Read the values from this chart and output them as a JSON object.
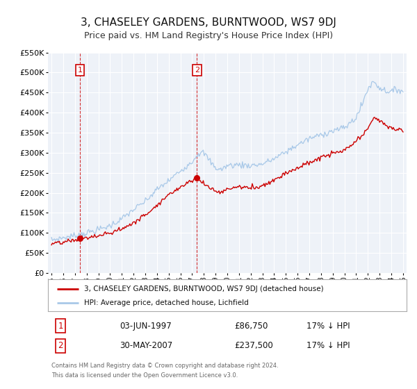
{
  "title": "3, CHASELEY GARDENS, BURNTWOOD, WS7 9DJ",
  "subtitle": "Price paid vs. HM Land Registry's House Price Index (HPI)",
  "title_fontsize": 11,
  "subtitle_fontsize": 9,
  "hpi_color": "#a8c8e8",
  "price_color": "#cc0000",
  "marker_color": "#cc0000",
  "background_color": "#ffffff",
  "plot_bg_color": "#eef2f8",
  "grid_color": "#ffffff",
  "ylim": [
    0,
    550000
  ],
  "yticks": [
    0,
    50000,
    100000,
    150000,
    200000,
    250000,
    300000,
    350000,
    400000,
    450000,
    500000,
    550000
  ],
  "xlim_start": 1994.7,
  "xlim_end": 2025.3,
  "sale1_x": 1997.42,
  "sale1_y": 86750,
  "sale1_label": "1",
  "sale2_x": 2007.41,
  "sale2_y": 237500,
  "sale2_label": "2",
  "legend_label_red": "3, CHASELEY GARDENS, BURNTWOOD, WS7 9DJ (detached house)",
  "legend_label_blue": "HPI: Average price, detached house, Lichfield",
  "table_row1": [
    "1",
    "03-JUN-1997",
    "£86,750",
    "17% ↓ HPI"
  ],
  "table_row2": [
    "2",
    "30-MAY-2007",
    "£237,500",
    "17% ↓ HPI"
  ],
  "footer1": "Contains HM Land Registry data © Crown copyright and database right 2024.",
  "footer2": "This data is licensed under the Open Government Licence v3.0.",
  "hpi_waypoints_x": [
    1995.0,
    1996.0,
    1997.0,
    1998.0,
    1999.0,
    2000.0,
    2001.0,
    2002.0,
    2003.0,
    2004.0,
    2005.0,
    2006.0,
    2007.0,
    2007.5,
    2008.0,
    2008.5,
    2009.0,
    2009.5,
    2010.0,
    2011.0,
    2012.0,
    2013.0,
    2014.0,
    2015.0,
    2016.0,
    2017.0,
    2018.0,
    2019.0,
    2020.0,
    2021.0,
    2021.5,
    2022.0,
    2022.5,
    2023.0,
    2023.5,
    2024.0,
    2024.5,
    2025.0
  ],
  "hpi_waypoints_y": [
    82000,
    88000,
    93000,
    100000,
    108000,
    118000,
    135000,
    158000,
    178000,
    208000,
    230000,
    255000,
    278000,
    298000,
    300000,
    280000,
    262000,
    258000,
    268000,
    270000,
    268000,
    272000,
    285000,
    302000,
    320000,
    335000,
    345000,
    355000,
    362000,
    388000,
    420000,
    460000,
    478000,
    462000,
    455000,
    452000,
    458000,
    455000
  ],
  "price_waypoints_x": [
    1995.0,
    1996.0,
    1997.0,
    1997.42,
    1998.0,
    1999.0,
    2000.0,
    2001.0,
    2002.0,
    2003.0,
    2004.0,
    2005.0,
    2006.0,
    2007.0,
    2007.41,
    2008.0,
    2009.0,
    2009.5,
    2010.0,
    2011.0,
    2012.0,
    2013.0,
    2014.0,
    2015.0,
    2016.0,
    2017.0,
    2018.0,
    2019.0,
    2020.0,
    2021.0,
    2022.0,
    2022.5,
    2023.0,
    2023.5,
    2024.0,
    2024.5,
    2025.0
  ],
  "price_waypoints_y": [
    72000,
    76000,
    82000,
    86750,
    88000,
    92000,
    100000,
    110000,
    125000,
    145000,
    170000,
    195000,
    215000,
    232000,
    237500,
    222000,
    205000,
    200000,
    210000,
    215000,
    212000,
    218000,
    232000,
    250000,
    262000,
    275000,
    288000,
    298000,
    305000,
    328000,
    358000,
    390000,
    380000,
    368000,
    362000,
    358000,
    355000
  ]
}
